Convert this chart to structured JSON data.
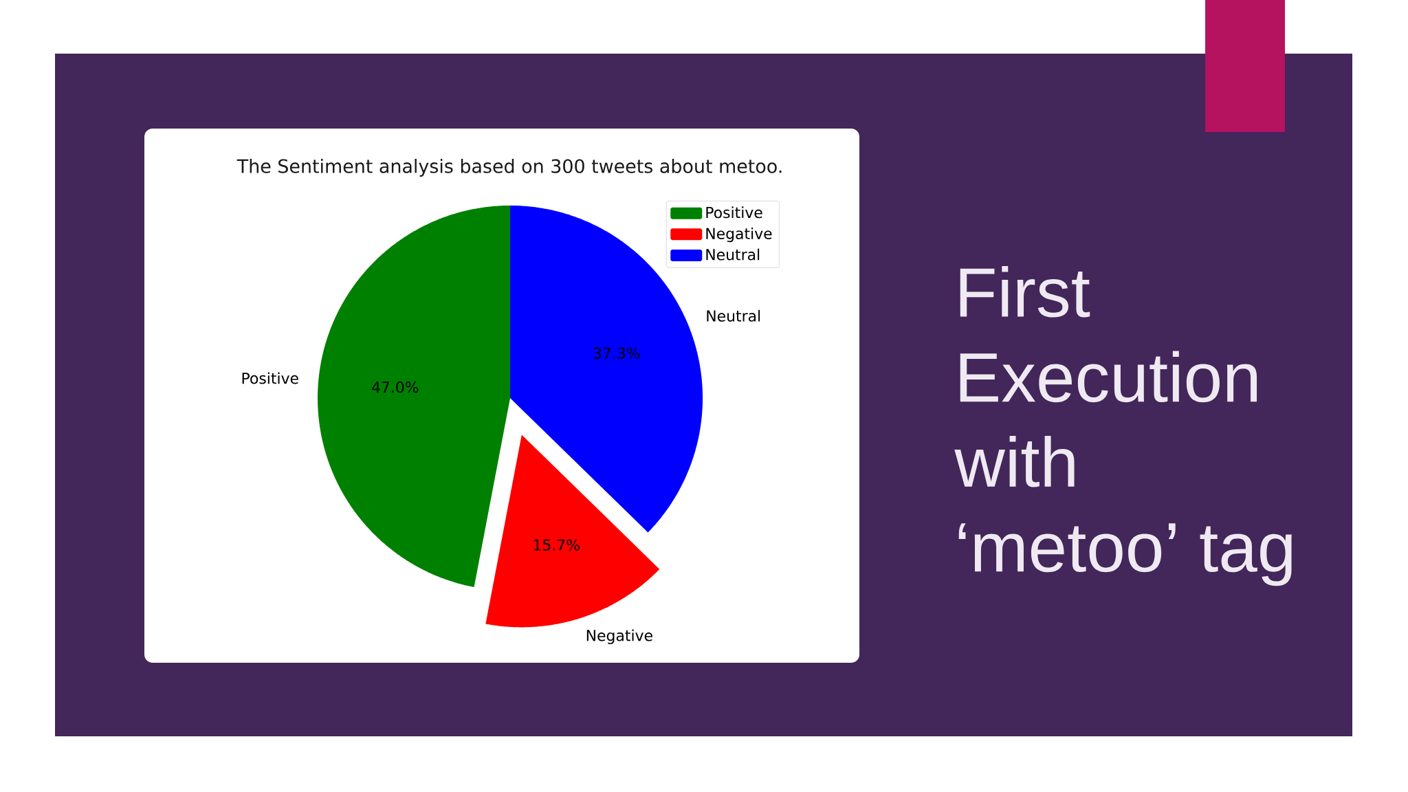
{
  "chart_data": {
    "type": "pie",
    "title": "The Sentiment analysis based on 300 tweets about metoo.",
    "categories": [
      "Positive",
      "Negative",
      "Neutral"
    ],
    "values": [
      47.0,
      15.7,
      37.3
    ],
    "colors": [
      "#008000",
      "#ff0000",
      "#0000ff"
    ],
    "value_labels": [
      "47.0%",
      "15.7%",
      "37.3%"
    ],
    "legend": "top right",
    "annotations": [
      "First Execution with ‘metoo’ tag"
    ]
  }
}
